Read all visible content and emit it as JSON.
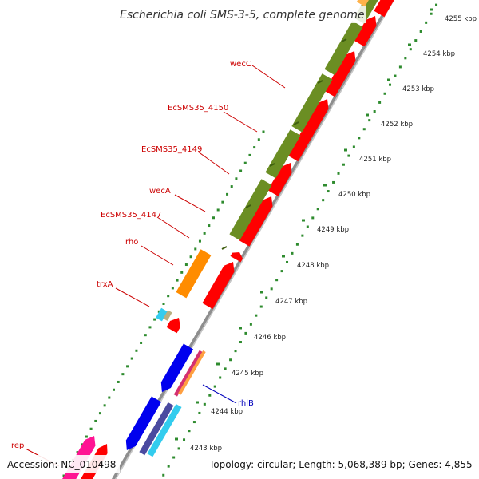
{
  "title": "Escherichia coli SMS-3-5, complete genome",
  "footer": {
    "accession": "Accession: NC_010498",
    "topology": "Topology: circular; Length: 5,068,389 bp; Genes: 4,855"
  },
  "colors": {
    "label_red": "#cc0000",
    "label_blue": "#0000bb",
    "backbone": "#9a9a9a",
    "ticks": "#2e8b2e",
    "cds_red": "#ff0000",
    "olive": "#6b8e23",
    "orange": "#ff8c00",
    "blue": "#0000ee",
    "cyan": "#33ccee",
    "magenta": "#ff1493"
  },
  "ticks": [
    {
      "label": "4255 kbp"
    },
    {
      "label": "4254 kbp"
    },
    {
      "label": "4253 kbp"
    },
    {
      "label": "4252 kbp"
    },
    {
      "label": "4251 kbp"
    },
    {
      "label": "4250 kbp"
    },
    {
      "label": "4249 kbp"
    },
    {
      "label": "4248 kbp"
    },
    {
      "label": "4247 kbp"
    },
    {
      "label": "4246 kbp"
    },
    {
      "label": "4245 kbp"
    },
    {
      "label": "4244 kbp"
    },
    {
      "label": "4243 kbp"
    }
  ],
  "gene_labels": [
    {
      "text": "wecC",
      "color": "red"
    },
    {
      "text": "EcSMS35_4150",
      "color": "red"
    },
    {
      "text": "EcSMS35_4149",
      "color": "red"
    },
    {
      "text": "wecA",
      "color": "red"
    },
    {
      "text": "EcSMS35_4147",
      "color": "red"
    },
    {
      "text": "rho",
      "color": "red"
    },
    {
      "text": "trxA",
      "color": "red"
    },
    {
      "text": "rhlB",
      "color": "blue"
    },
    {
      "text": "rep",
      "color": "red"
    }
  ]
}
